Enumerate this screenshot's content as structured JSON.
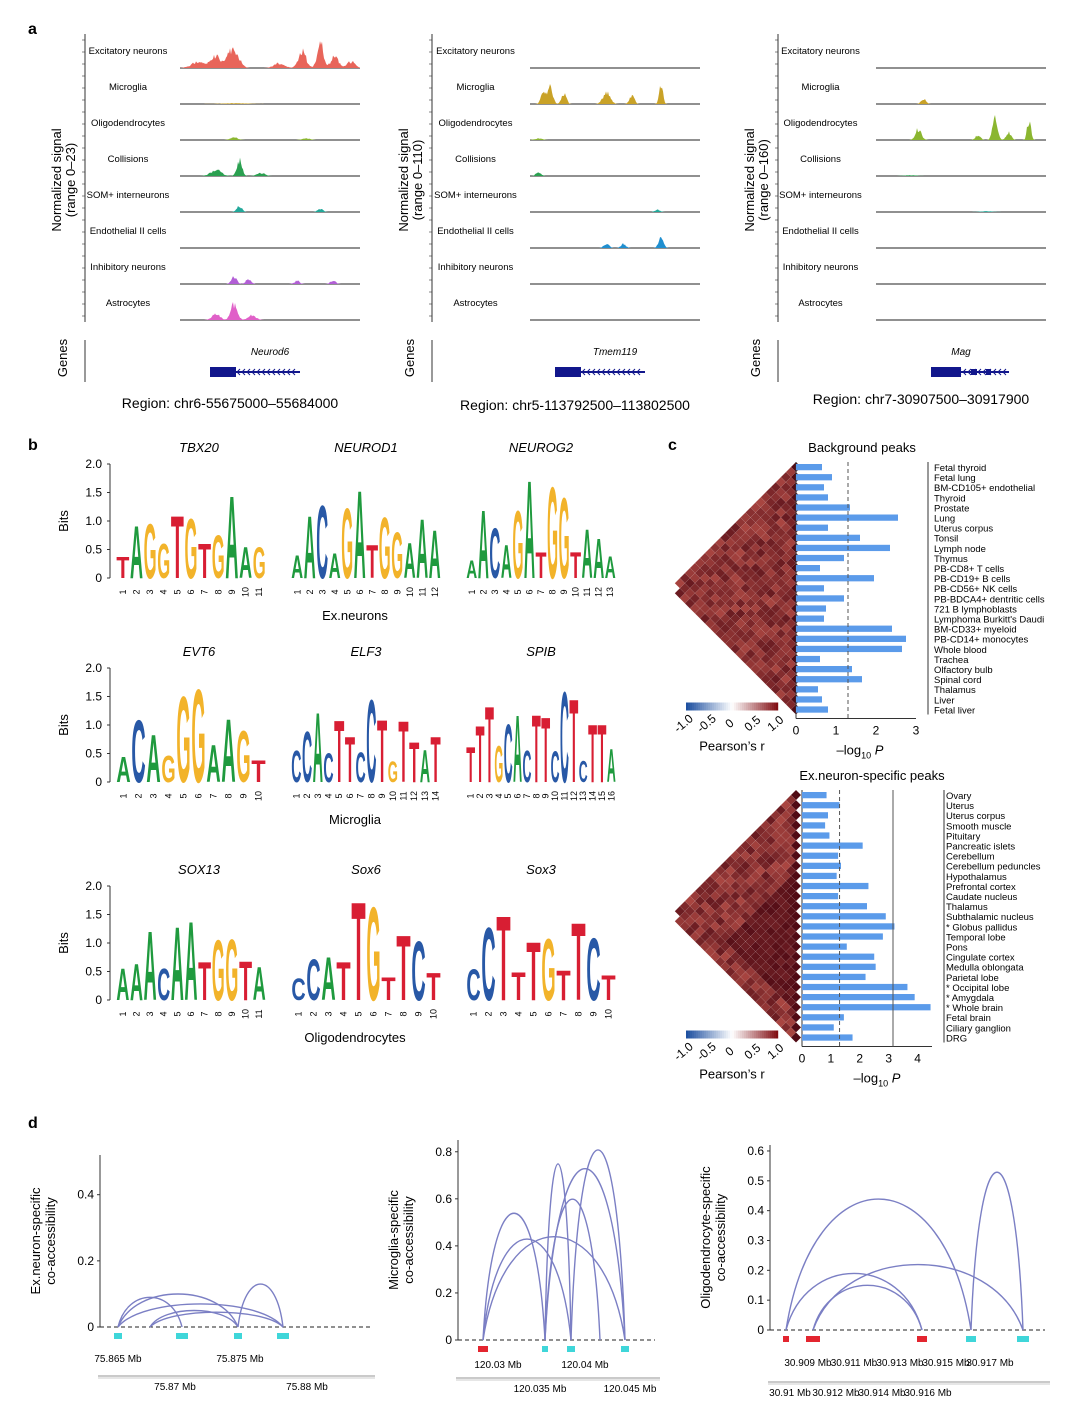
{
  "panels": {
    "a": "a",
    "b": "b",
    "c": "c",
    "d": "d"
  },
  "panel_a": {
    "genes_label": "Genes",
    "tracks": [
      {
        "ylabel": "Normalized signal",
        "range": "(range 0–23)",
        "gene": "Neurod6",
        "region": "Region: chr6-55675000–55684000",
        "cells": [
          "Excitatory neurons",
          "Microglia",
          "Oligodendrocytes",
          "Collisions",
          "SOM+ interneurons",
          "Endothelial II cells",
          "Inhibitory neurons",
          "Astrocytes"
        ],
        "colors": [
          "#e8655a",
          "#c9a227",
          "#8bb630",
          "#2aa050",
          "#22a89a",
          "#1f8fd0",
          "#b25ed6",
          "#e060c8"
        ]
      },
      {
        "ylabel": "Normalized signal",
        "range": "(range 0–110)",
        "gene": "Tmem119",
        "region": "Region: chr5-113792500–113802500",
        "cells": [
          "Excitatory neurons",
          "Microglia",
          "Oligodendrocytes",
          "Collisions",
          "SOM+ interneurons",
          "Endothelial II cells",
          "Inhibitory neurons",
          "Astrocytes"
        ],
        "colors": [
          "#e8655a",
          "#c9a227",
          "#8bb630",
          "#2aa050",
          "#22a89a",
          "#1f8fd0",
          "#b25ed6",
          "#e060c8"
        ]
      },
      {
        "ylabel": "Normalized signal",
        "range": "(range 0–160)",
        "gene": "Mag",
        "region": "Region: chr7-30907500–30917900",
        "cells": [
          "Excitatory neurons",
          "Microglia",
          "Oligodendrocytes",
          "Collisions",
          "SOM+ interneurons",
          "Endothelial II cells",
          "Inhibitory neurons",
          "Astrocytes"
        ],
        "colors": [
          "#e8655a",
          "#c9a227",
          "#8bb630",
          "#2aa050",
          "#22a89a",
          "#1f8fd0",
          "#b25ed6",
          "#e060c8"
        ]
      }
    ]
  },
  "panel_b": {
    "ylabel": "Bits",
    "yticks": [
      "2.0",
      "1.5",
      "1.0",
      "0.5",
      "0"
    ],
    "groups": [
      {
        "label": "Ex.neurons",
        "motifs": [
          {
            "name": "TBX20",
            "len": 11,
            "seq": "TAGGTGTGAAG"
          },
          {
            "name": "NEUROD1",
            "len": 12,
            "seq": "AACAGATGGAAA"
          },
          {
            "name": "NEUROG2",
            "len": 13,
            "seq": "AACAGATGGTAAA"
          }
        ]
      },
      {
        "label": "Microglia",
        "motifs": [
          {
            "name": "EVT6",
            "len": 10,
            "seq": "ACAGGGAAGT"
          },
          {
            "name": "ELF3",
            "len": 14,
            "seq": "CCACTTCCTGTTAT"
          },
          {
            "name": "SPIB",
            "len": 16,
            "seq": "TTTGCACTTCCTCTTA"
          }
        ]
      },
      {
        "label": "Oligodendrocytes",
        "motifs": [
          {
            "name": "SOX13",
            "len": 11,
            "seq": "AAACAATGGTA"
          },
          {
            "name": "Sox6",
            "len": 10,
            "seq": "CCATTGTTCT"
          },
          {
            "name": "Sox3",
            "len": 10,
            "seq": "CCTTTGTTCT"
          }
        ]
      }
    ]
  },
  "panel_c": {
    "colorbar_label": "Pearson’s r",
    "colorbar_ticks": [
      "-1.0",
      "-0.5",
      "0",
      "0.5",
      "1.0"
    ],
    "xaxis_prefix": "–log",
    "xaxis_sub": "10",
    "xaxis_suffix": " P",
    "blocks": [
      {
        "title": "Background peaks",
        "xmax": 3,
        "xticks": [
          "0",
          "1",
          "2",
          "3"
        ],
        "dashed": 1.3,
        "solid": null,
        "chart_data": {
          "type": "bar",
          "categories": [
            "Fetal thyroid",
            "Fetal lung",
            "BM-CD105+ endothelial",
            "Thyroid",
            "Prostate",
            "Lung",
            "Uterus corpus",
            "Tonsil",
            "Lymph node",
            "Thymus",
            "PB-CD8+ T cells",
            "PB-CD19+ B cells",
            "PB-CD56+ NK cells",
            "PB-BDCA4+ dentritic cells",
            "721 B lymphoblasts",
            "Lymphoma Burkitt's Daudi",
            "BM-CD33+ myeloid",
            "PB-CD14+ monocytes",
            "Whole blood",
            "Trachea",
            "Olfactory bulb",
            "Spinal cord",
            "Thalamus",
            "Liver",
            "Fetal liver"
          ],
          "values": [
            0.65,
            0.9,
            0.7,
            0.8,
            1.35,
            2.55,
            0.8,
            1.6,
            2.35,
            1.2,
            0.6,
            1.95,
            0.7,
            1.2,
            0.75,
            0.7,
            2.4,
            2.75,
            2.65,
            0.6,
            1.4,
            1.65,
            0.55,
            0.65,
            0.8
          ]
        }
      },
      {
        "title": "Ex.neuron-specific peaks",
        "xmax": 4.5,
        "xticks": [
          "0",
          "1",
          "2",
          "3",
          "4"
        ],
        "dashed": 1.3,
        "solid": 3.15,
        "chart_data": {
          "type": "bar",
          "categories": [
            "Ovary",
            "Uterus",
            "Uterus corpus",
            "Smooth muscle",
            "Pituitary",
            "Pancreatic islets",
            "Cerebellum",
            "Cerebellum peduncles",
            "Hypothalamus",
            "Prefrontal cortex",
            "Caudate nucleus",
            "Thalamus",
            "Subthalamic nucleus",
            "* Globus pallidus",
            "Temporal lobe",
            "Pons",
            "Cingulate cortex",
            "Medulla oblongata",
            "Parietal lobe",
            "* Occipital lobe",
            "* Amygdala",
            "* Whole brain",
            "Fetal brain",
            "Ciliary ganglion",
            "DRG"
          ],
          "values": [
            0.85,
            1.3,
            0.9,
            0.8,
            0.95,
            2.1,
            1.25,
            1.35,
            1.2,
            2.3,
            1.25,
            2.25,
            2.9,
            3.2,
            2.8,
            1.55,
            2.5,
            2.55,
            2.2,
            3.65,
            3.9,
            4.45,
            1.45,
            1.1,
            1.75
          ]
        }
      }
    ]
  },
  "panel_d": [
    {
      "ylabel": "Ex.neuron-specific",
      "ylabel2": "co-accessibility",
      "yticks": [
        "0",
        "0.2",
        "0.4"
      ],
      "ymax": 0.52,
      "xlabels": [
        "75.865 Mb",
        "75.875 Mb"
      ],
      "xlabels2": [
        "75.87 Mb",
        "75.88 Mb"
      ]
    },
    {
      "ylabel": "Microglia-specific",
      "ylabel2": "co-accessibility",
      "yticks": [
        "0",
        "0.2",
        "0.4",
        "0.6",
        "0.8"
      ],
      "ymax": 0.85,
      "xlabels": [
        "120.03 Mb",
        "120.04 Mb"
      ],
      "xlabels2": [
        "120.035 Mb",
        "120.045 Mb"
      ]
    },
    {
      "ylabel": "Oligodendrocyte-specific",
      "ylabel2": "co-accessibility",
      "yticks": [
        "0",
        "0.1",
        "0.2",
        "0.3",
        "0.4",
        "0.5",
        "0.6"
      ],
      "ymax": 0.62,
      "xlabels": [
        "30.909 Mb",
        "30.911 Mb",
        "30.913 Mb",
        "30.915 Mb",
        "30.917 Mb"
      ],
      "xlabels2": [
        "30.91 Mb",
        "30.912 Mb",
        "30.914 Mb",
        "30.916 Mb"
      ]
    }
  ],
  "colors": {
    "bar": "#5b9bea",
    "arc": "#7b7fc4",
    "peak_cyan": "#3fd6d9",
    "peak_red": "#e3252f",
    "gene": "#12178c",
    "A": "#1f9a3e",
    "C": "#2858a6",
    "G": "#f2b32a",
    "T": "#d81e33"
  }
}
